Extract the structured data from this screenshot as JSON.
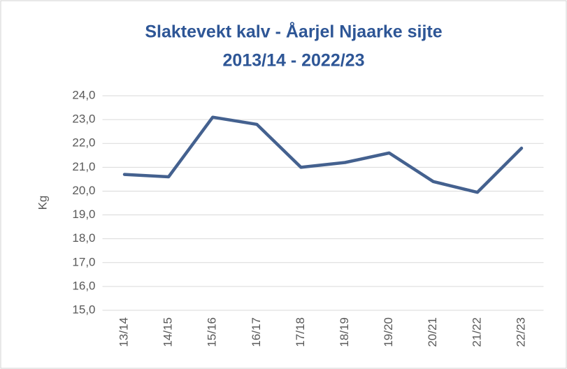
{
  "chart_data": {
    "type": "line",
    "title": [
      "Slaktevekt kalv - Åarjel Njaarke sijte",
      "2013/14 - 2022/23"
    ],
    "y_label": "Kg",
    "categories": [
      "13/14",
      "14/15",
      "15/16",
      "16/17",
      "17/18",
      "18/19",
      "19/20",
      "20/21",
      "21/22",
      "22/23"
    ],
    "series": [
      {
        "name": "Slaktevekt kalv",
        "color": "#44618f",
        "values": [
          20.7,
          20.6,
          23.1,
          22.8,
          21.0,
          21.2,
          21.6,
          20.4,
          19.95,
          21.8
        ]
      }
    ],
    "ylim": [
      15,
      24
    ],
    "yticks": [
      {
        "value": 15,
        "label": "15,0"
      },
      {
        "value": 16,
        "label": "16,0"
      },
      {
        "value": 17,
        "label": "17,0"
      },
      {
        "value": 18,
        "label": "18,0"
      },
      {
        "value": 19,
        "label": "19,0"
      },
      {
        "value": 20,
        "label": "20,0"
      },
      {
        "value": 21,
        "label": "21,0"
      },
      {
        "value": 22,
        "label": "22,0"
      },
      {
        "value": 23,
        "label": "23,0"
      },
      {
        "value": 24,
        "label": "24,0"
      }
    ],
    "grid": true
  }
}
